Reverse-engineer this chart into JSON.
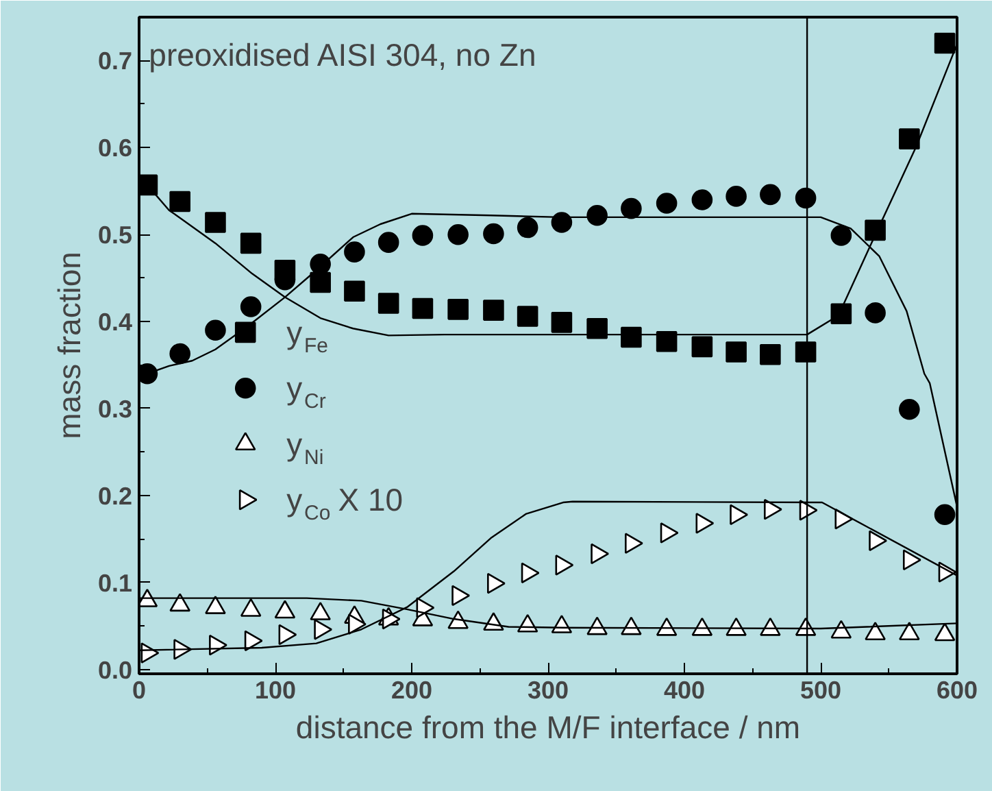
{
  "chart_data": {
    "type": "scatter",
    "xlabel": "distance from the M/F interface / nm",
    "ylabel": "mass fraction",
    "annotations": [
      "preoxidised AISI 304, no Zn"
    ],
    "x": [
      6,
      30,
      56,
      82,
      107,
      133,
      158,
      183,
      208,
      234,
      260,
      285,
      310,
      336,
      361,
      387,
      413,
      438,
      463,
      489,
      515,
      540,
      565,
      591
    ],
    "series": [
      {
        "name": "y$_{Fe}$",
        "color": "#000000",
        "marker": "square",
        "values": [
          0.557,
          0.538,
          0.514,
          0.49,
          0.459,
          0.445,
          0.435,
          0.421,
          0.415,
          0.414,
          0.413,
          0.406,
          0.399,
          0.392,
          0.382,
          0.377,
          0.371,
          0.365,
          0.362,
          0.365,
          0.409,
          0.505,
          0.61,
          0.72
        ]
      },
      {
        "name": "y$_{Cr}$",
        "color": "#000000",
        "marker": "circle",
        "values": [
          0.34,
          0.363,
          0.39,
          0.417,
          0.448,
          0.466,
          0.48,
          0.491,
          0.499,
          0.5,
          0.501,
          0.508,
          0.514,
          0.522,
          0.53,
          0.536,
          0.54,
          0.544,
          0.546,
          0.542,
          0.499,
          0.41,
          0.299,
          0.178
        ]
      },
      {
        "name": "y$_{Ni}$",
        "color": "#ffffff",
        "marker": "triangle",
        "values": [
          0.079,
          0.074,
          0.071,
          0.068,
          0.066,
          0.064,
          0.06,
          0.058,
          0.057,
          0.054,
          0.052,
          0.05,
          0.049,
          0.047,
          0.047,
          0.046,
          0.046,
          0.046,
          0.046,
          0.046,
          0.043,
          0.041,
          0.041,
          0.04
        ]
      },
      {
        "name": "y$_{Co}$ X 10",
        "color": "#ffffff",
        "marker": "triangle-right",
        "values": [
          0.019,
          0.023,
          0.028,
          0.033,
          0.04,
          0.046,
          0.052,
          0.058,
          0.071,
          0.085,
          0.099,
          0.111,
          0.12,
          0.133,
          0.145,
          0.157,
          0.168,
          0.178,
          0.184,
          0.183,
          0.173,
          0.148,
          0.126,
          0.112
        ]
      },
      {
        "type": "line",
        "color": "#000000",
        "x": [
          6,
          22,
          32,
          56,
          83,
          107,
          133,
          157,
          183,
          224,
          309,
          490,
          513,
          536,
          570,
          600
        ],
        "values": [
          0.557,
          0.528,
          0.517,
          0.49,
          0.455,
          0.428,
          0.404,
          0.392,
          0.384,
          0.385,
          0.385,
          0.385,
          0.407,
          0.486,
          0.601,
          0.719
        ]
      },
      {
        "type": "line",
        "color": "#000000",
        "x": [
          6,
          22,
          39,
          56,
          80,
          107,
          130,
          157,
          177,
          200,
          258,
          309,
          500,
          522,
          543,
          563,
          576,
          580,
          600
        ],
        "values": [
          0.34,
          0.349,
          0.355,
          0.368,
          0.395,
          0.428,
          0.459,
          0.497,
          0.512,
          0.524,
          0.522,
          0.52,
          0.52,
          0.507,
          0.475,
          0.412,
          0.34,
          0.329,
          0.187
        ]
      },
      {
        "type": "line",
        "color": "#000000",
        "x": [
          0,
          90,
          130,
          163,
          197,
          231,
          258,
          284,
          311,
          318,
          501,
          600
        ],
        "values": [
          0.022,
          0.025,
          0.03,
          0.046,
          0.072,
          0.113,
          0.151,
          0.179,
          0.192,
          0.193,
          0.192,
          0.108
        ]
      },
      {
        "type": "line",
        "color": "#000000",
        "x": [
          0,
          123,
          163,
          197,
          231,
          271,
          311,
          500,
          600
        ],
        "values": [
          0.082,
          0.082,
          0.079,
          0.069,
          0.058,
          0.049,
          0.048,
          0.047,
          0.053
        ]
      }
    ],
    "ref_lines": [
      {
        "axis": "x",
        "value": 490,
        "color": "#000000"
      }
    ],
    "xlim": [
      0,
      600
    ],
    "ylim": [
      -0.005,
      0.75
    ],
    "xticks": [
      0,
      {
        "value": 50,
        "label": null
      },
      100,
      {
        "value": 150,
        "label": null
      },
      200,
      {
        "value": 250,
        "label": null
      },
      300,
      {
        "value": 350,
        "label": null
      },
      400,
      {
        "value": 450,
        "label": null
      },
      500,
      {
        "value": 550,
        "label": null
      },
      600
    ],
    "yticks": [
      {
        "value": 0,
        "label": "0.0"
      },
      {
        "value": 0.05,
        "label": null
      },
      {
        "value": 0.1,
        "label": "0.1"
      },
      {
        "value": 0.15,
        "label": null
      },
      {
        "value": 0.2,
        "label": "0.2"
      },
      {
        "value": 0.25,
        "label": null
      },
      {
        "value": 0.3,
        "label": "0.3"
      },
      {
        "value": 0.35,
        "label": null
      },
      {
        "value": 0.4,
        "label": "0.4"
      },
      {
        "value": 0.45,
        "label": null
      },
      {
        "value": 0.5,
        "label": "0.5"
      },
      {
        "value": 0.55,
        "label": null
      },
      {
        "value": 0.6,
        "label": "0.6"
      },
      {
        "value": 0.65,
        "label": null
      },
      {
        "value": 0.7,
        "label": "0.7"
      }
    ],
    "grid": false,
    "legend": "left"
  }
}
